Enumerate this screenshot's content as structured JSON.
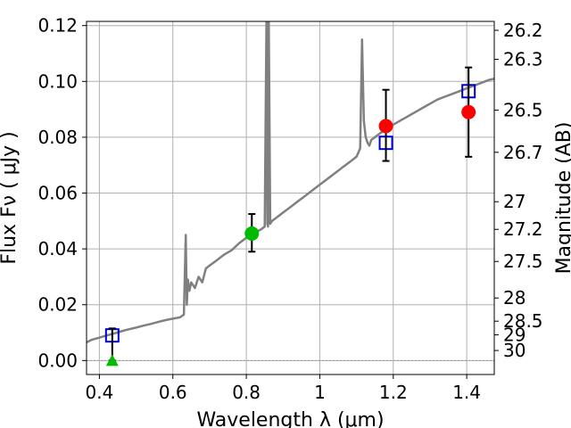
{
  "chart_data": {
    "type": "scatter",
    "title": "",
    "xlabel": "Wavelength  λ (μm)",
    "ylabel": "Flux  Fν  ( μJy )",
    "y2label": "Magnitude (AB)",
    "xlim": [
      0.365,
      1.475
    ],
    "ylim": [
      -0.005,
      0.1215
    ],
    "grid": true,
    "x_ticks": [
      0.4,
      0.6,
      0.8,
      1.0,
      1.2,
      1.4
    ],
    "x_tick_labels": [
      "0.4",
      "0.6",
      "0.8",
      "1",
      "1.2",
      "1.4"
    ],
    "y_ticks": [
      0.0,
      0.02,
      0.04,
      0.06,
      0.08,
      0.1,
      0.12
    ],
    "y_tick_labels": [
      "0.00",
      "0.02",
      "0.04",
      "0.06",
      "0.08",
      "0.10",
      "0.12"
    ],
    "y2_ticks": [
      {
        "label": "26.2",
        "flux": 0.1183
      },
      {
        "label": "26.3",
        "flux": 0.1079
      },
      {
        "label": "26.5",
        "flux": 0.0897
      },
      {
        "label": "26.7",
        "flux": 0.0746
      },
      {
        "label": "27",
        "flux": 0.0569
      },
      {
        "label": "27.2",
        "flux": 0.047
      },
      {
        "label": "27.5",
        "flux": 0.0355
      },
      {
        "label": "28",
        "flux": 0.0224
      },
      {
        "label": "28.5",
        "flux": 0.0141
      },
      {
        "label": "29",
        "flux": 0.0092
      },
      {
        "label": "30",
        "flux": 0.0036
      }
    ],
    "series": [
      {
        "kind": "spectrum",
        "color": "#808080",
        "x": [
          0.365,
          0.38,
          0.4,
          0.42,
          0.44,
          0.46,
          0.48,
          0.5,
          0.52,
          0.54,
          0.56,
          0.58,
          0.6,
          0.62,
          0.63,
          0.635,
          0.638,
          0.641,
          0.645,
          0.65,
          0.66,
          0.67,
          0.68,
          0.69,
          0.7,
          0.72,
          0.74,
          0.76,
          0.78,
          0.8,
          0.82,
          0.84,
          0.85,
          0.855,
          0.857,
          0.859,
          0.861,
          0.865,
          0.87,
          0.88,
          0.9,
          0.92,
          0.94,
          0.96,
          0.98,
          1.0,
          1.02,
          1.04,
          1.06,
          1.08,
          1.1,
          1.11,
          1.115,
          1.12,
          1.125,
          1.13,
          1.135,
          1.14,
          1.16,
          1.18,
          1.2,
          1.22,
          1.24,
          1.26,
          1.28,
          1.3,
          1.32,
          1.34,
          1.36,
          1.38,
          1.4,
          1.42,
          1.44,
          1.46,
          1.475
        ],
        "y": [
          0.0065,
          0.0075,
          0.0082,
          0.009,
          0.0097,
          0.0105,
          0.0112,
          0.0118,
          0.0125,
          0.0131,
          0.0138,
          0.0145,
          0.015,
          0.0155,
          0.0165,
          0.045,
          0.02,
          0.029,
          0.025,
          0.028,
          0.026,
          0.03,
          0.028,
          0.033,
          0.034,
          0.036,
          0.038,
          0.0395,
          0.042,
          0.044,
          0.0455,
          0.047,
          0.048,
          0.123,
          0.049,
          0.048,
          0.123,
          0.049,
          0.05,
          0.051,
          0.053,
          0.055,
          0.057,
          0.059,
          0.061,
          0.063,
          0.065,
          0.067,
          0.069,
          0.071,
          0.073,
          0.076,
          0.115,
          0.086,
          0.08,
          0.078,
          0.077,
          0.079,
          0.081,
          0.083,
          0.0845,
          0.086,
          0.0875,
          0.089,
          0.0905,
          0.092,
          0.0935,
          0.0945,
          0.0955,
          0.0965,
          0.0975,
          0.0985,
          0.0995,
          0.1005,
          0.101
        ]
      },
      {
        "kind": "model-squares",
        "color": "#0000cc",
        "points": [
          {
            "x": 0.435,
            "y": 0.009
          },
          {
            "x": 1.18,
            "y": 0.078
          },
          {
            "x": 1.405,
            "y": 0.0965
          }
        ]
      },
      {
        "kind": "observed-circles",
        "color": "#ff0000",
        "points": [
          {
            "x": 1.18,
            "y": 0.084,
            "err_low": 0.0125,
            "err_high": 0.013
          },
          {
            "x": 1.405,
            "y": 0.089,
            "err_low": 0.016,
            "err_high": 0.016
          }
        ]
      },
      {
        "kind": "observed-circle-green",
        "color": "#00bb00",
        "points": [
          {
            "x": 0.815,
            "y": 0.0455,
            "err_low": 0.0065,
            "err_high": 0.007
          }
        ]
      },
      {
        "kind": "upper-limit-triangle",
        "color": "#00bb00",
        "points": [
          {
            "x": 0.435,
            "y": 0.0,
            "err_low": 0.0,
            "err_high": 0.0115
          }
        ]
      }
    ]
  }
}
